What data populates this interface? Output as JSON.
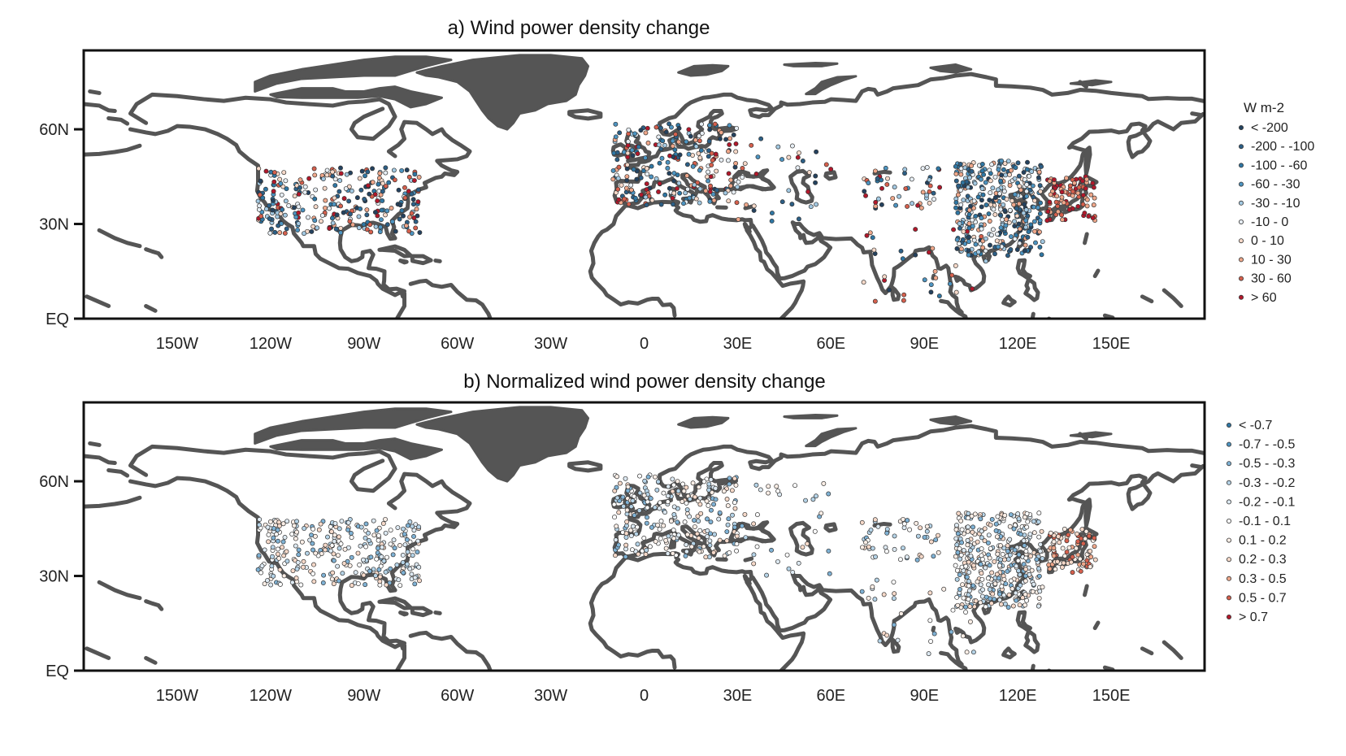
{
  "colors": {
    "coast": "#555555",
    "frame": "#111111",
    "very_neg": "#2b4a6b",
    "neg": "#3a7fa8",
    "mid_neg": "#78b3d4",
    "light_neg": "#c8dcea",
    "neutral": "#f0f0f0",
    "light_pos": "#f3c9b4",
    "pos": "#e0876a",
    "strong_pos": "#c0392b"
  },
  "panels": [
    {
      "title": "a) Wind power density change",
      "legend_title": "W m-2",
      "legend": [
        {
          "label": "< -200",
          "color": "#24425f"
        },
        {
          "label": "-200 - -100",
          "color": "#2c5f86"
        },
        {
          "label": "-100 - -60",
          "color": "#2f77a4"
        },
        {
          "label": "-60 - -30",
          "color": "#4d94c1"
        },
        {
          "label": "-30 - -10",
          "color": "#a3c9e2"
        },
        {
          "label": "-10 - 0",
          "color": "#e8eff5"
        },
        {
          "label": "0 - 10",
          "color": "#f6d9c9"
        },
        {
          "label": "10 - 30",
          "color": "#efa78a"
        },
        {
          "label": "30 - 60",
          "color": "#d6604d"
        },
        {
          "label": "> 60",
          "color": "#b2182b"
        }
      ]
    },
    {
      "title": "b) Normalized wind power density change",
      "legend_title": "",
      "legend": [
        {
          "label": "< -0.7",
          "color": "#2f77a4"
        },
        {
          "label": "-0.7 - -0.5",
          "color": "#4d94c1"
        },
        {
          "label": "-0.5 - -0.3",
          "color": "#7fb2d5"
        },
        {
          "label": "-0.3 - -0.2",
          "color": "#b5d3e7"
        },
        {
          "label": "-0.2 - -0.1",
          "color": "#dde9f2"
        },
        {
          "label": "-0.1 - 0.1",
          "color": "#ffffff"
        },
        {
          "label": "0.1 - 0.2",
          "color": "#fbeee6"
        },
        {
          "label": "0.2 - 0.3",
          "color": "#f6d9c9"
        },
        {
          "label": "0.3 - 0.5",
          "color": "#efa78a"
        },
        {
          "label": "0.5 - 0.7",
          "color": "#d6604d"
        },
        {
          "label": "> 0.7",
          "color": "#b2182b"
        }
      ]
    }
  ],
  "axes": {
    "lon_labels": [
      "150W",
      "120W",
      "90W",
      "60W",
      "30W",
      "0",
      "30E",
      "60E",
      "90E",
      "120E",
      "150E"
    ],
    "lon_values": [
      -150,
      -120,
      -90,
      -60,
      -30,
      0,
      30,
      60,
      90,
      120,
      150
    ],
    "lat_labels": [
      "60N",
      "30N",
      "EQ"
    ],
    "lat_values": [
      60,
      30,
      0
    ],
    "lon_range": [
      -180,
      180
    ],
    "lat_range": [
      0,
      85
    ]
  }
}
